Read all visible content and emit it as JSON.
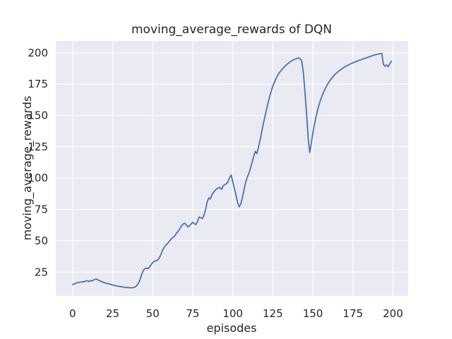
{
  "chart_data": {
    "type": "line",
    "title": "moving_average_rewards of DQN",
    "xlabel": "episodes",
    "ylabel": "moving_average_rewards",
    "legend": false,
    "grid": true,
    "x_start": 0,
    "x_step": 1,
    "xlim": [
      -10.5,
      209.5
    ],
    "ylim": [
      6,
      209.5
    ],
    "xticks": [
      0,
      25,
      50,
      75,
      100,
      125,
      150,
      175,
      200
    ],
    "yticks": [
      25,
      50,
      75,
      100,
      125,
      150,
      175,
      200
    ],
    "line_color": "#4c72b0",
    "axes_bg": "#eaeaf2",
    "grid_color": "#ffffff",
    "text_color": "#262626",
    "values": [
      15.0,
      15.6,
      16.2,
      16.5,
      16.8,
      17.0,
      17.4,
      17.1,
      17.9,
      18.2,
      17.4,
      18.3,
      17.9,
      18.7,
      19.3,
      19.4,
      18.7,
      18.1,
      17.5,
      17.0,
      16.5,
      16.1,
      15.8,
      15.5,
      15.1,
      14.7,
      14.4,
      14.1,
      13.8,
      13.6,
      13.4,
      13.2,
      13.0,
      12.8,
      12.7,
      12.6,
      12.5,
      12.5,
      12.6,
      13.1,
      14.2,
      16.0,
      18.6,
      22.8,
      26.0,
      27.6,
      28.2,
      27.8,
      29.0,
      31.0,
      32.6,
      33.6,
      34.0,
      34.6,
      36.2,
      38.6,
      42.0,
      44.4,
      46.4,
      47.5,
      49.0,
      50.6,
      52.0,
      53.0,
      54.2,
      56.4,
      57.6,
      60.0,
      62.0,
      63.4,
      64.0,
      62.6,
      61.0,
      62.0,
      63.6,
      64.8,
      63.6,
      63.0,
      65.5,
      69.0,
      68.4,
      67.7,
      70.2,
      75.0,
      81.0,
      84.2,
      83.4,
      86.8,
      88.8,
      90.2,
      91.5,
      92.2,
      92.6,
      91.0,
      93.8,
      94.9,
      95.5,
      97.2,
      100.4,
      102.5,
      97.0,
      91.8,
      86.4,
      80.6,
      77.0,
      79.6,
      84.2,
      90.6,
      96.6,
      100.6,
      103.6,
      108.0,
      112.5,
      117.0,
      121.4,
      119.6,
      124.6,
      130.2,
      136.8,
      143.0,
      148.8,
      154.6,
      160.0,
      165.0,
      169.6,
      173.4,
      176.6,
      179.6,
      182.0,
      184.0,
      185.7,
      187.2,
      188.6,
      189.9,
      191.0,
      192.0,
      193.0,
      193.8,
      194.5,
      195.0,
      195.5,
      196.0,
      195.2,
      193.6,
      185.0,
      170.0,
      152.0,
      133.0,
      120.5,
      128.0,
      136.0,
      143.0,
      149.2,
      154.6,
      159.2,
      163.2,
      166.6,
      169.6,
      172.2,
      174.6,
      176.6,
      178.5,
      180.1,
      181.6,
      183.0,
      184.2,
      185.3,
      186.3,
      187.2,
      188.1,
      188.9,
      189.6,
      190.3,
      190.9,
      191.5,
      192.1,
      192.6,
      193.1,
      193.6,
      194.1,
      194.5,
      195.0,
      195.4,
      195.9,
      196.3,
      196.8,
      197.2,
      197.7,
      198.1,
      198.5,
      198.8,
      199.1,
      199.4,
      199.6,
      191.0,
      189.3,
      190.4,
      188.9,
      191.3,
      193.3
    ]
  }
}
